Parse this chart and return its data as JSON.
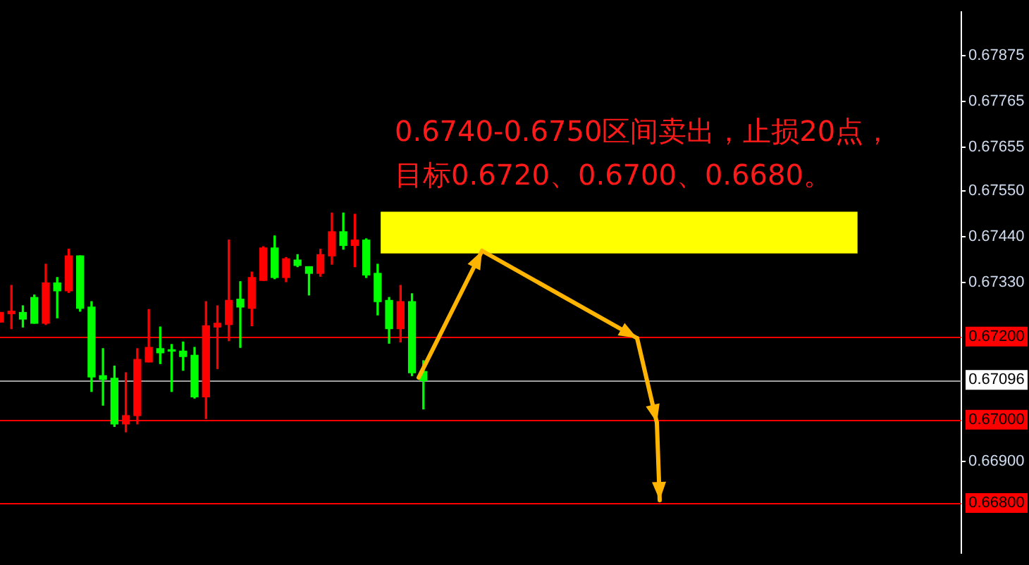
{
  "chart_data": {
    "type": "candlestick",
    "categories": [
      null,
      null,
      null,
      null,
      null,
      null,
      null,
      null,
      null,
      null,
      null,
      null,
      null,
      null,
      null,
      null,
      null,
      null,
      null,
      null,
      null,
      null,
      null,
      null,
      null,
      null,
      null,
      null,
      null,
      null,
      null,
      null,
      null,
      null,
      null,
      null,
      null,
      null,
      null,
      null,
      null,
      null,
      null,
      null,
      null,
      null,
      null,
      null,
      null,
      null,
      null,
      null,
      null,
      null,
      null,
      null,
      null,
      null,
      null,
      null,
      null,
      null,
      null,
      null,
      null,
      null,
      null,
      null,
      null,
      null,
      null,
      null,
      null,
      null,
      null,
      null,
      null,
      null,
      null,
      null,
      null,
      null,
      null,
      null,
      null
    ],
    "ohlc": [
      [
        0.67235,
        0.67258,
        0.67235,
        0.67258
      ],
      [
        0.67255,
        0.67323,
        0.67219,
        0.67261
      ],
      [
        0.67258,
        0.67274,
        0.67223,
        0.67242
      ],
      [
        0.67294,
        0.673,
        0.67232,
        0.67232
      ],
      [
        0.67232,
        0.67374,
        0.67229,
        0.67329
      ],
      [
        0.67329,
        0.67342,
        0.67245,
        0.6731
      ],
      [
        0.6731,
        0.6741,
        0.67306,
        0.67394
      ],
      [
        0.67394,
        0.67394,
        0.67261,
        0.67268
      ],
      [
        0.67271,
        0.67284,
        0.67068,
        0.67103
      ],
      [
        0.67106,
        0.67171,
        0.67035,
        0.67097
      ],
      [
        0.671,
        0.67129,
        0.66984,
        0.6699
      ],
      [
        0.6699,
        0.67113,
        0.66971,
        0.6701
      ],
      [
        0.6701,
        0.67171,
        0.6699,
        0.67145
      ],
      [
        0.67139,
        0.67265,
        0.67139,
        0.67174
      ],
      [
        0.67171,
        0.67223,
        0.67135,
        0.67161
      ],
      [
        0.67168,
        0.67181,
        0.67068,
        0.67165
      ],
      [
        0.67165,
        0.67187,
        0.67119,
        0.67152
      ],
      [
        0.67155,
        0.67174,
        0.67052,
        0.67055
      ],
      [
        0.67055,
        0.67284,
        0.67003,
        0.67226
      ],
      [
        0.67223,
        0.67274,
        0.67123,
        0.67232
      ],
      [
        0.67229,
        0.67432,
        0.6719,
        0.67287
      ],
      [
        0.6729,
        0.67332,
        0.67174,
        0.67271
      ],
      [
        0.67268,
        0.67355,
        0.67226,
        0.67342
      ],
      [
        0.67335,
        0.67416,
        0.67335,
        0.67413
      ],
      [
        0.67413,
        0.67442,
        0.67339,
        0.67342
      ],
      [
        0.67342,
        0.6739,
        0.67332,
        0.67387
      ],
      [
        0.67384,
        0.67397,
        0.67368,
        0.67371
      ],
      [
        0.67368,
        0.67368,
        0.673,
        0.67352
      ],
      [
        0.67352,
        0.6741,
        0.67345,
        0.67397
      ],
      [
        0.67394,
        0.67497,
        0.67374,
        0.67452
      ],
      [
        0.67452,
        0.67497,
        0.6741,
        0.67419
      ],
      [
        0.67419,
        0.67494,
        0.67368,
        0.67432
      ],
      [
        0.67432,
        0.67435,
        0.67342,
        0.67348
      ],
      [
        0.67352,
        0.67374,
        0.67252,
        0.67284
      ],
      [
        0.67287,
        0.67294,
        0.67184,
        0.67219
      ],
      [
        0.67219,
        0.67323,
        0.67187,
        0.67284
      ],
      [
        0.67284,
        0.67303,
        0.67106,
        0.67113
      ],
      [
        0.67116,
        0.67142,
        0.67026,
        0.67094
      ],
      null,
      null,
      null,
      null,
      null,
      null,
      null,
      null,
      null,
      null,
      null,
      null,
      null,
      null,
      null,
      null,
      null,
      null,
      null,
      null,
      null,
      null,
      null,
      null,
      null,
      null,
      null,
      null,
      null,
      null,
      null,
      null,
      null,
      null,
      null,
      null,
      null,
      null,
      null,
      null,
      null,
      null,
      null,
      null,
      null,
      null,
      null
    ],
    "colors": [
      "#ff0000",
      "#ff0000",
      "#00ff00",
      "#00ff00",
      "#ff0000",
      "#00ff00",
      "#ff0000",
      "#00ff00",
      "#00ff00",
      "#00ff00",
      "#00ff00",
      "#ff0000",
      "#ff0000",
      "#ff0000",
      "#00ff00",
      "#00ff00",
      "#00ff00",
      "#00ff00",
      "#ff0000",
      "#ff0000",
      "#ff0000",
      "#00ff00",
      "#ff0000",
      "#ff0000",
      "#00ff00",
      "#ff0000",
      "#00ff00",
      "#00ff00",
      "#ff0000",
      "#ff0000",
      "#00ff00",
      "#ff0000",
      "#00ff00",
      "#00ff00",
      "#00ff00",
      "#ff0000",
      "#00ff00",
      "#00ff00",
      null,
      null,
      null,
      null,
      null,
      null,
      null,
      null,
      null,
      null,
      null,
      null,
      null,
      null,
      null,
      null,
      null,
      null,
      null,
      null,
      null,
      null,
      null,
      null,
      null,
      null,
      null,
      null,
      null,
      null,
      null,
      null,
      null,
      null,
      null,
      null,
      null,
      null,
      null,
      null,
      null,
      null,
      null,
      null,
      null,
      null,
      null
    ],
    "ylim": [
      0.6668,
      0.6798
    ],
    "yticks": [
      {
        "value": 0.67875,
        "label": "0.67875"
      },
      {
        "value": 0.67765,
        "label": "0.67765"
      },
      {
        "value": 0.67655,
        "label": "0.67655"
      },
      {
        "value": 0.6755,
        "label": "0.67550"
      },
      {
        "value": 0.6744,
        "label": "0.67440"
      },
      {
        "value": 0.6733,
        "label": "0.67330"
      },
      {
        "value": 0.669,
        "label": "0.66900"
      }
    ],
    "ref_lines": [
      {
        "axis": "y",
        "value": 0.672,
        "label": "0.67200",
        "color": "#ff0000"
      },
      {
        "axis": "y",
        "value": 0.67096,
        "label": "0.67096",
        "color": "#a0a0a0"
      },
      {
        "axis": "y",
        "value": 0.67,
        "label": "0.67000",
        "color": "#ff0000"
      },
      {
        "axis": "y",
        "value": 0.668,
        "label": "0.66800",
        "color": "#ff0000"
      }
    ],
    "bands": [
      {
        "axis": "y",
        "from": 0.674,
        "to": 0.675,
        "color": "#ffff00"
      }
    ],
    "annotations": [
      "0.6740-0.6750区间卖出，止损20点，",
      "目标0.6720、0.6700、0.6680。"
    ]
  }
}
